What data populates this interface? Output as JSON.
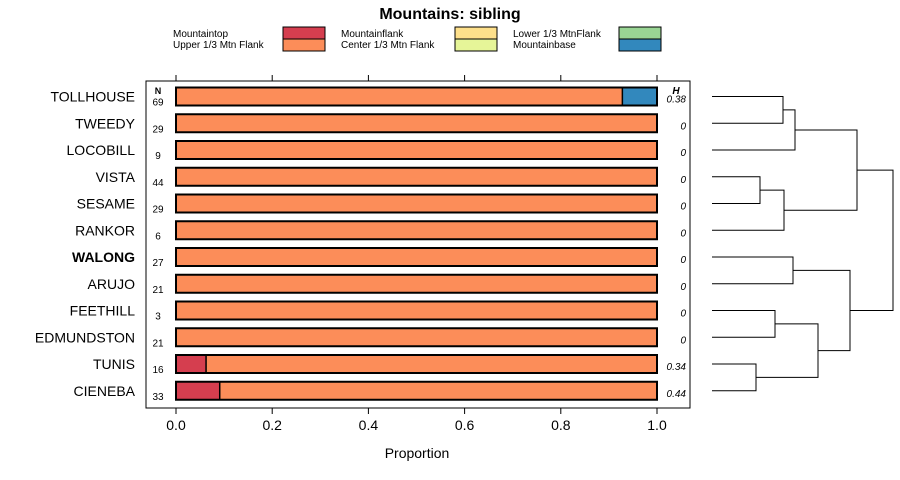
{
  "chart_data": {
    "type": "bar",
    "orientation": "horizontal-stacked",
    "title": "Mountains: sibling",
    "xlabel": "Proportion",
    "xlim": [
      0,
      1
    ],
    "x_ticks": [
      "0.0",
      "0.2",
      "0.4",
      "0.6",
      "0.8",
      "1.0"
    ],
    "n_header": "N",
    "h_header": "H",
    "legend": [
      {
        "name": "Mountaintop",
        "color": "#d53e4f"
      },
      {
        "name": "Upper 1/3 Mtn Flank",
        "color": "#fc8d59"
      },
      {
        "name": "Mountainflank",
        "color": "#fee08b"
      },
      {
        "name": "Center 1/3 Mtn Flank",
        "color": "#e6f598"
      },
      {
        "name": "Lower 1/3 MtnFlank",
        "color": "#99d594"
      },
      {
        "name": "Mountainbase",
        "color": "#3288bd"
      }
    ],
    "rows": [
      {
        "label": "TOLLHOUSE",
        "n": "69",
        "h": "0.38",
        "bold": false,
        "values": [
          0,
          0.928,
          0,
          0,
          0,
          0.072
        ]
      },
      {
        "label": "TWEEDY",
        "n": "29",
        "h": "0",
        "bold": false,
        "values": [
          0,
          1,
          0,
          0,
          0,
          0
        ]
      },
      {
        "label": "LOCOBILL",
        "n": "9",
        "h": "0",
        "bold": false,
        "values": [
          0,
          1,
          0,
          0,
          0,
          0
        ]
      },
      {
        "label": "VISTA",
        "n": "44",
        "h": "0",
        "bold": false,
        "values": [
          0,
          1,
          0,
          0,
          0,
          0
        ]
      },
      {
        "label": "SESAME",
        "n": "29",
        "h": "0",
        "bold": false,
        "values": [
          0,
          1,
          0,
          0,
          0,
          0
        ]
      },
      {
        "label": "RANKOR",
        "n": "6",
        "h": "0",
        "bold": false,
        "values": [
          0,
          1,
          0,
          0,
          0,
          0
        ]
      },
      {
        "label": "WALONG",
        "n": "27",
        "h": "0",
        "bold": true,
        "values": [
          0,
          1,
          0,
          0,
          0,
          0
        ]
      },
      {
        "label": "ARUJO",
        "n": "21",
        "h": "0",
        "bold": false,
        "values": [
          0,
          1,
          0,
          0,
          0,
          0
        ]
      },
      {
        "label": "FEETHILL",
        "n": "3",
        "h": "0",
        "bold": false,
        "values": [
          0,
          1,
          0,
          0,
          0,
          0
        ]
      },
      {
        "label": "EDMUNDSTON",
        "n": "21",
        "h": "0",
        "bold": false,
        "values": [
          0,
          1,
          0,
          0,
          0,
          0
        ]
      },
      {
        "label": "TUNIS",
        "n": "16",
        "h": "0.34",
        "bold": false,
        "values": [
          0.0625,
          0.9375,
          0,
          0,
          0,
          0
        ]
      },
      {
        "label": "CIENEBA",
        "n": "33",
        "h": "0.44",
        "bold": false,
        "values": [
          0.0909,
          0.9091,
          0,
          0,
          0,
          0
        ]
      }
    ]
  }
}
